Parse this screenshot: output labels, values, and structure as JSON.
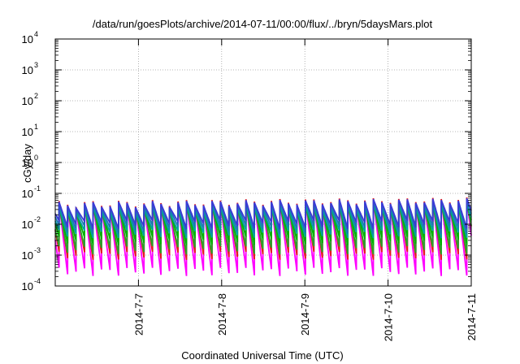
{
  "chart_data": {
    "type": "line",
    "title": "/data/run/goesPlots/archive/2014-07-11/00:00/flux/../bryn/5daysMars.plot",
    "xlabel": "Coordinated Universal Time (UTC)",
    "ylabel": "cGy/day",
    "y_scale": "log",
    "ylim": [
      0.0001,
      10000
    ],
    "y_ticks": [
      {
        "value": 0.0001,
        "base": "10",
        "exp": "-4"
      },
      {
        "value": 0.001,
        "base": "10",
        "exp": "-3"
      },
      {
        "value": 0.01,
        "base": "10",
        "exp": "-2"
      },
      {
        "value": 0.1,
        "base": "10",
        "exp": "-1"
      },
      {
        "value": 1,
        "base": "10",
        "exp": "0"
      },
      {
        "value": 10,
        "base": "10",
        "exp": "1"
      },
      {
        "value": 100,
        "base": "10",
        "exp": "2"
      },
      {
        "value": 1000,
        "base": "10",
        "exp": "3"
      },
      {
        "value": 10000,
        "base": "10",
        "exp": "4"
      }
    ],
    "xlim": [
      "2014-07-06 00:00",
      "2014-07-11 00:00"
    ],
    "x_ticks": [
      {
        "value": "2014-07-07 00:00",
        "label": "2014-7-7"
      },
      {
        "value": "2014-07-08 00:00",
        "label": "2014-7-8"
      },
      {
        "value": "2014-07-09 00:00",
        "label": "2014-7-9"
      },
      {
        "value": "2014-07-10 00:00",
        "label": "2014-7-10"
      },
      {
        "value": "2014-07-11 00:00",
        "label": "2014-7-11"
      }
    ],
    "grid": true,
    "pattern": "sawtooth",
    "cycle_hours": 2.45,
    "series": [
      {
        "color": "#e41a1c",
        "peak": 0.045,
        "trough": 0.001
      },
      {
        "color": "#ff00ff",
        "peak": 0.04,
        "trough": 0.0003
      },
      {
        "color": "#00b300",
        "peak": 0.036,
        "trough": 0.003
      },
      {
        "color": "#2ca02c",
        "peak": 0.032,
        "trough": 0.0015
      },
      {
        "color": "#00a0a0",
        "peak": 0.03,
        "trough": 0.005
      },
      {
        "color": "#3a3ad6",
        "peak": 0.042,
        "trough": 0.01
      },
      {
        "color": "#1f77b4",
        "peak": 0.038,
        "trough": 0.007
      }
    ]
  }
}
